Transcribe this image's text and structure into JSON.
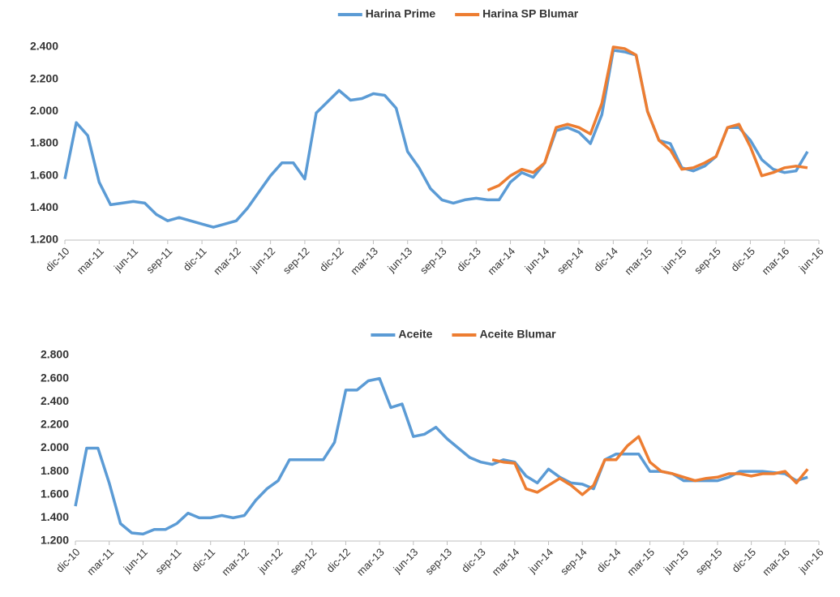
{
  "chart_data": [
    {
      "type": "line",
      "categories": [
        "dic-10",
        null,
        null,
        "mar-11",
        null,
        null,
        "jun-11",
        null,
        null,
        "sep-11",
        null,
        null,
        "dic-11",
        null,
        null,
        "mar-12",
        null,
        null,
        "jun-12",
        null,
        null,
        "sep-12",
        null,
        null,
        "dic-12",
        null,
        null,
        "mar-13",
        null,
        null,
        "jun-13",
        null,
        null,
        "sep-13",
        null,
        null,
        "dic-13",
        null,
        null,
        "mar-14",
        null,
        null,
        "jun-14",
        null,
        null,
        "sep-14",
        null,
        null,
        "dic-14",
        null,
        null,
        "mar-15",
        null,
        null,
        "jun-15",
        null,
        null,
        "sep-15",
        null,
        null,
        "dic-15",
        null,
        null,
        "mar-16",
        null,
        null,
        "jun-16"
      ],
      "series": [
        {
          "name": "Harina Prime",
          "color": "#5b9bd5",
          "values": [
            1580,
            1930,
            1850,
            1560,
            1420,
            1430,
            1440,
            1430,
            1360,
            1320,
            1340,
            1320,
            1300,
            1280,
            1300,
            1320,
            1400,
            1500,
            1600,
            1680,
            1680,
            1580,
            1990,
            2060,
            2130,
            2070,
            2080,
            2110,
            2100,
            2020,
            1750,
            1650,
            1520,
            1450,
            1430,
            1450,
            1460,
            1450,
            1450,
            1560,
            1620,
            1590,
            1680,
            1880,
            1900,
            1870,
            1800,
            1980,
            2380,
            2370,
            2350,
            2000,
            1820,
            1800,
            1650,
            1630,
            1660,
            1720,
            1900,
            1900,
            1820,
            1700,
            1640,
            1620,
            1630,
            1750,
            null
          ]
        },
        {
          "name": "Harina SP Blumar",
          "color": "#ed7d31",
          "values": [
            null,
            null,
            null,
            null,
            null,
            null,
            null,
            null,
            null,
            null,
            null,
            null,
            null,
            null,
            null,
            null,
            null,
            null,
            null,
            null,
            null,
            null,
            null,
            null,
            null,
            null,
            null,
            null,
            null,
            null,
            null,
            null,
            null,
            null,
            null,
            null,
            null,
            1510,
            1540,
            1600,
            1640,
            1620,
            1680,
            1900,
            1920,
            1900,
            1860,
            2050,
            2400,
            2390,
            2350,
            2000,
            1820,
            1760,
            1640,
            1650,
            1680,
            1720,
            1900,
            1920,
            1780,
            1600,
            1620,
            1650,
            1660,
            1650,
            null
          ]
        }
      ],
      "ylim": [
        1200,
        2400
      ],
      "yticks": [
        {
          "value": 1200,
          "label": "1.200"
        },
        {
          "value": 1400,
          "label": "1.400"
        },
        {
          "value": 1600,
          "label": "1.600"
        },
        {
          "value": 1800,
          "label": "1.800"
        },
        {
          "value": 2000,
          "label": "2.000"
        },
        {
          "value": 2200,
          "label": "2.200"
        },
        {
          "value": 2400,
          "label": "2.400"
        }
      ],
      "legend": "top",
      "grid": false
    },
    {
      "type": "line",
      "categories": [
        "dic-10",
        null,
        null,
        "mar-11",
        null,
        null,
        "jun-11",
        null,
        null,
        "sep-11",
        null,
        null,
        "dic-11",
        null,
        null,
        "mar-12",
        null,
        null,
        "jun-12",
        null,
        null,
        "sep-12",
        null,
        null,
        "dic-12",
        null,
        null,
        "mar-13",
        null,
        null,
        "jun-13",
        null,
        null,
        "sep-13",
        null,
        null,
        "dic-13",
        null,
        null,
        "mar-14",
        null,
        null,
        "jun-14",
        null,
        null,
        "sep-14",
        null,
        null,
        "dic-14",
        null,
        null,
        "mar-15",
        null,
        null,
        "jun-15",
        null,
        null,
        "sep-15",
        null,
        null,
        "dic-15",
        null,
        null,
        "mar-16",
        null,
        null,
        "jun-16"
      ],
      "series": [
        {
          "name": "Aceite",
          "color": "#5b9bd5",
          "values": [
            1500,
            2000,
            2000,
            1700,
            1350,
            1270,
            1260,
            1300,
            1300,
            1350,
            1440,
            1400,
            1400,
            1420,
            1400,
            1420,
            1550,
            1650,
            1720,
            1900,
            1900,
            1900,
            1900,
            2050,
            2500,
            2500,
            2580,
            2600,
            2350,
            2380,
            2100,
            2120,
            2180,
            2080,
            2000,
            1920,
            1880,
            1860,
            1900,
            1880,
            1760,
            1700,
            1820,
            1750,
            1700,
            1690,
            1650,
            1900,
            1950,
            1950,
            1950,
            1800,
            1800,
            1780,
            1720,
            1720,
            1720,
            1720,
            1750,
            1800,
            1800,
            1800,
            1790,
            1780,
            1720,
            1750,
            null
          ]
        },
        {
          "name": "Aceite Blumar",
          "color": "#ed7d31",
          "values": [
            null,
            null,
            null,
            null,
            null,
            null,
            null,
            null,
            null,
            null,
            null,
            null,
            null,
            null,
            null,
            null,
            null,
            null,
            null,
            null,
            null,
            null,
            null,
            null,
            null,
            null,
            null,
            null,
            null,
            null,
            null,
            null,
            null,
            null,
            null,
            null,
            null,
            1900,
            1880,
            1870,
            1650,
            1620,
            1680,
            1740,
            1680,
            1600,
            1680,
            1900,
            1900,
            2020,
            2100,
            1880,
            1800,
            1780,
            1750,
            1720,
            1740,
            1750,
            1780,
            1780,
            1760,
            1780,
            1780,
            1800,
            1700,
            1820,
            null
          ]
        }
      ],
      "ylim": [
        1200,
        2800
      ],
      "yticks": [
        {
          "value": 1200,
          "label": "1.200"
        },
        {
          "value": 1400,
          "label": "1.400"
        },
        {
          "value": 1600,
          "label": "1.600"
        },
        {
          "value": 1800,
          "label": "1.800"
        },
        {
          "value": 2000,
          "label": "2.000"
        },
        {
          "value": 2200,
          "label": "2.200"
        },
        {
          "value": 2400,
          "label": "2.400"
        },
        {
          "value": 2600,
          "label": "2.600"
        },
        {
          "value": 2800,
          "label": "2.800"
        }
      ],
      "legend": "top",
      "grid": false
    }
  ]
}
